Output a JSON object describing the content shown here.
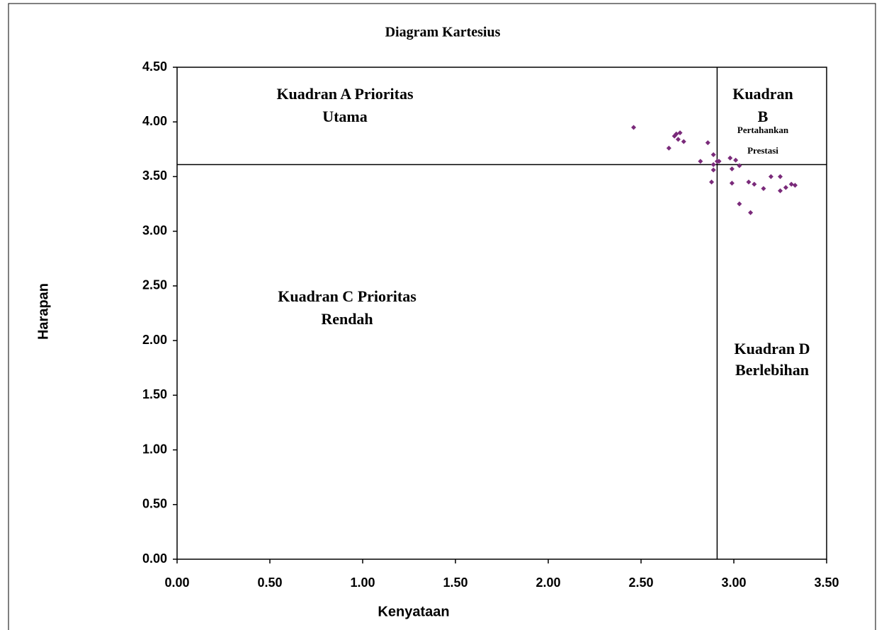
{
  "chart_data": {
    "type": "scatter",
    "title": "Diagram Kartesius",
    "x_label": "Kenyataan",
    "y_label": "Harapan",
    "color": "#7a2a7a",
    "xlim": [
      0,
      3.5
    ],
    "ylim": [
      0,
      4.5
    ],
    "xticks": [
      {
        "value": 0,
        "label": "0.00"
      },
      {
        "value": 0.5,
        "label": "0.50"
      },
      {
        "value": 1,
        "label": "1.00"
      },
      {
        "value": 1.5,
        "label": "1.50"
      },
      {
        "value": 2,
        "label": "2.00"
      },
      {
        "value": 2.5,
        "label": "2.50"
      },
      {
        "value": 3,
        "label": "3.00"
      },
      {
        "value": 3.5,
        "label": "3.50"
      }
    ],
    "yticks": [
      {
        "value": 0,
        "label": "0.00"
      },
      {
        "value": 0.5,
        "label": "0.50"
      },
      {
        "value": 1,
        "label": "1.00"
      },
      {
        "value": 1.5,
        "label": "1.50"
      },
      {
        "value": 2,
        "label": "2.00"
      },
      {
        "value": 2.5,
        "label": "2.50"
      },
      {
        "value": 3,
        "label": "3.00"
      },
      {
        "value": 3.5,
        "label": "3.50"
      },
      {
        "value": 4,
        "label": "4.00"
      },
      {
        "value": 4.5,
        "label": "4.50"
      }
    ],
    "quadrant_x": 2.91,
    "quadrant_y": 3.61,
    "x": [
      2.46,
      2.65,
      2.68,
      2.7,
      2.71,
      2.73,
      2.69,
      2.86,
      2.82,
      2.89,
      2.89,
      2.91,
      2.92,
      2.89,
      2.88,
      2.98,
      3.01,
      3.03,
      2.99,
      2.99,
      3.08,
      3.11,
      3.03,
      3.09,
      3.16,
      3.2,
      3.25,
      3.25,
      3.28,
      3.31,
      3.33
    ],
    "values": [
      3.95,
      3.76,
      3.87,
      3.84,
      3.9,
      3.82,
      3.89,
      3.81,
      3.64,
      3.7,
      3.61,
      3.64,
      3.64,
      3.56,
      3.45,
      3.67,
      3.65,
      3.6,
      3.57,
      3.44,
      3.45,
      3.43,
      3.25,
      3.17,
      3.39,
      3.5,
      3.5,
      3.37,
      3.4,
      3.43,
      3.42
    ],
    "annotations": [
      {
        "lines": [
          "Kuadran A Prioritas",
          "Utama"
        ]
      },
      {
        "lines": [
          "Kuadran",
          "B",
          "Pertahankan",
          "Prestasi"
        ]
      },
      {
        "lines": [
          "Kuadran C Prioritas",
          "Rendah"
        ]
      },
      {
        "lines": [
          "Kuadran D",
          "Berlebihan"
        ]
      }
    ]
  }
}
